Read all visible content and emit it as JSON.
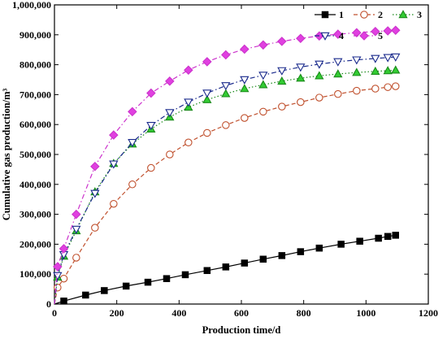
{
  "chart_data": {
    "type": "line",
    "xlabel": "Production time/d",
    "ylabel": "Cumulative gas production/m³",
    "xlim": [
      0,
      1200
    ],
    "ylim": [
      0,
      1000000
    ],
    "x_ticks": [
      0,
      200,
      400,
      600,
      800,
      1000,
      1200
    ],
    "x_tick_labels": [
      "0",
      "200",
      "400",
      "600",
      "800",
      "1000",
      "1200"
    ],
    "y_ticks": [
      0,
      100000,
      200000,
      300000,
      400000,
      500000,
      600000,
      700000,
      800000,
      900000,
      1000000
    ],
    "y_tick_labels": [
      "0",
      "100,000",
      "200,000",
      "300,000",
      "400,000",
      "500,000",
      "600,000",
      "700,000",
      "800,000",
      "900,000",
      "1,000,000"
    ],
    "grid": false,
    "legend_placement": "top-right",
    "x": [
      0,
      10,
      30,
      60,
      90,
      120,
      150,
      180,
      210,
      240,
      270,
      300,
      330,
      360,
      390,
      420,
      450,
      480,
      510,
      540,
      570,
      600,
      630,
      660,
      690,
      720,
      750,
      780,
      810,
      840,
      870,
      900,
      930,
      960,
      990,
      1020,
      1050,
      1080,
      1095
    ],
    "series": [
      {
        "name": "1",
        "color": "#000000",
        "marker": "square-filled",
        "line_style": "solid",
        "x": [
          0,
          30,
          100,
          160,
          230,
          300,
          360,
          420,
          490,
          550,
          610,
          670,
          730,
          790,
          850,
          920,
          980,
          1040,
          1070,
          1095
        ],
        "y": [
          0,
          10000,
          30000,
          45000,
          60000,
          73000,
          85000,
          98000,
          112000,
          124000,
          137000,
          150000,
          162000,
          175000,
          187000,
          200000,
          210000,
          220000,
          226000,
          230000
        ]
      },
      {
        "name": "2",
        "color": "#c0502d",
        "marker": "circle-open",
        "line_style": "dashed",
        "x": [
          0,
          10,
          30,
          70,
          130,
          190,
          250,
          310,
          370,
          430,
          490,
          550,
          610,
          670,
          730,
          790,
          850,
          910,
          970,
          1030,
          1070,
          1095
        ],
        "y": [
          0,
          55000,
          85000,
          155000,
          255000,
          335000,
          400000,
          455000,
          500000,
          540000,
          572000,
          598000,
          622000,
          643000,
          660000,
          675000,
          690000,
          702000,
          713000,
          720000,
          725000,
          728000
        ]
      },
      {
        "name": "3",
        "color": "#1a8a1a",
        "fill_color": "#33cc33",
        "marker": "triangle-up-filled",
        "line_style": "dotted",
        "x": [
          0,
          10,
          30,
          70,
          130,
          190,
          250,
          310,
          370,
          430,
          490,
          550,
          610,
          670,
          730,
          790,
          850,
          910,
          970,
          1030,
          1070,
          1095
        ],
        "y": [
          0,
          90000,
          160000,
          245000,
          375000,
          470000,
          535000,
          585000,
          625000,
          658000,
          683000,
          703000,
          720000,
          733000,
          745000,
          755000,
          763000,
          769000,
          774000,
          778000,
          780000,
          782000
        ]
      },
      {
        "name": "4",
        "color": "#1a2a8c",
        "marker": "triangle-down-open",
        "line_style": "dash-dot",
        "x": [
          0,
          10,
          30,
          70,
          130,
          190,
          250,
          310,
          370,
          430,
          490,
          550,
          610,
          670,
          730,
          790,
          850,
          910,
          970,
          1030,
          1070,
          1095
        ],
        "y": [
          0,
          95000,
          165000,
          250000,
          370000,
          468000,
          540000,
          597000,
          640000,
          675000,
          705000,
          730000,
          750000,
          765000,
          780000,
          792000,
          802000,
          810000,
          816000,
          821000,
          824000,
          826000
        ]
      },
      {
        "name": "5",
        "color": "#cc33cc",
        "fill_color": "#e040e0",
        "marker": "diamond-filled",
        "line_style": "dash-dot",
        "x": [
          0,
          10,
          30,
          70,
          130,
          190,
          250,
          310,
          370,
          430,
          490,
          550,
          610,
          670,
          730,
          790,
          850,
          910,
          970,
          1030,
          1070,
          1095
        ],
        "y": [
          0,
          125000,
          185000,
          300000,
          460000,
          565000,
          643000,
          705000,
          745000,
          782000,
          810000,
          833000,
          852000,
          866000,
          878000,
          888000,
          896000,
          902000,
          907000,
          911000,
          913000,
          915000
        ]
      }
    ]
  }
}
